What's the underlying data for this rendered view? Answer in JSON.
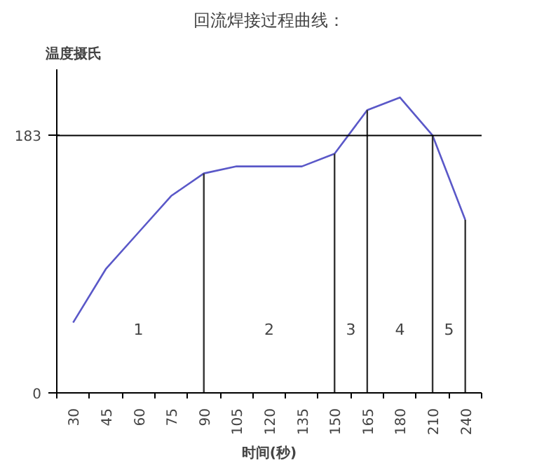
{
  "chart_data": {
    "type": "line",
    "title": "回流焊接过程曲线：",
    "xlabel": "时间(秒)",
    "ylabel": "温度摄氏",
    "categories": [
      "30",
      "45",
      "60",
      "75",
      "90",
      "105",
      "120",
      "135",
      "150",
      "165",
      "180",
      "210",
      "240"
    ],
    "series": [
      {
        "color": "#5a58c8",
        "values": [
          50,
          88,
          114,
          140,
          156,
          161,
          161,
          161,
          170,
          201,
          210,
          183,
          123
        ]
      }
    ],
    "ylim": [
      0,
      230
    ],
    "yticks": [
      0,
      183
    ],
    "grid": false,
    "marker": "none",
    "line_style": "solid",
    "ref_lines": [
      {
        "axis": "y",
        "value": 183,
        "color": "#000000"
      },
      {
        "axis": "x",
        "value": "90",
        "color": "#333333"
      },
      {
        "axis": "x",
        "value": "150",
        "color": "#333333"
      },
      {
        "axis": "x",
        "value": "165",
        "color": "#333333"
      },
      {
        "axis": "x",
        "value": "210",
        "color": "#333333"
      },
      {
        "axis": "x",
        "value": "240",
        "color": "#333333"
      }
    ],
    "annotations": [
      "1",
      "2",
      "3",
      "4",
      "5"
    ]
  }
}
